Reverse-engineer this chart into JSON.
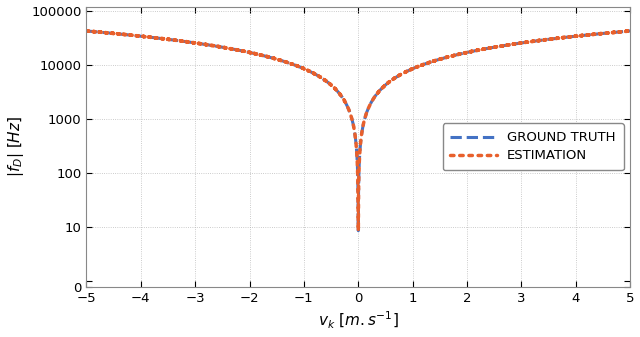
{
  "xlabel": "$v_k\\ [m.s^{-1}]$",
  "ylabel": "$|f_D|\\ [Hz]$",
  "xlim": [
    -5,
    5
  ],
  "xticks": [
    -5,
    -4,
    -3,
    -2,
    -1,
    0,
    1,
    2,
    3,
    4,
    5
  ],
  "yticks_symlog": [
    0,
    10,
    100,
    1000,
    10000,
    100000
  ],
  "ytick_labels": [
    "0",
    "10",
    "100",
    "1000",
    "10000",
    "100000"
  ],
  "ground_truth_color": "#4472C4",
  "estimation_color": "#E8602C",
  "background_color": "#FFFFFF",
  "doppler_slope": 8500,
  "linthresh": 1.0,
  "legend_labels": [
    "GROUND TRUTH",
    "ESTIMATION"
  ],
  "figsize": [
    6.4,
    3.37
  ],
  "dpi": 100
}
